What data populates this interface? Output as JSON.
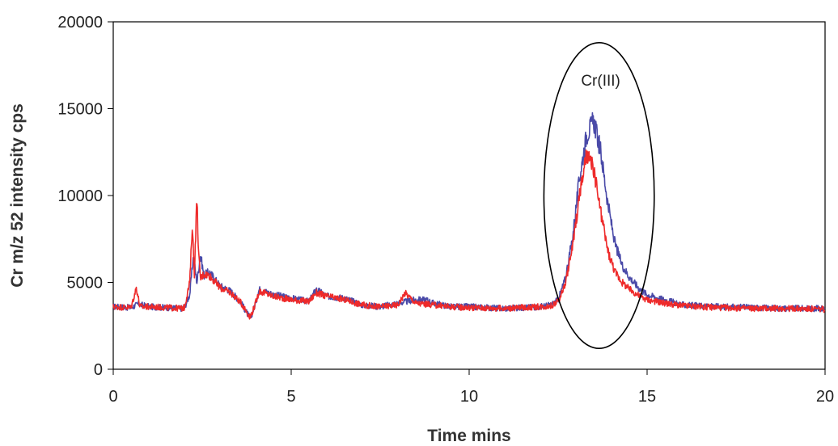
{
  "chart_data": {
    "type": "line",
    "title": "",
    "xlabel": "Time mins",
    "ylabel": "Cr m/z 52 intensity cps",
    "xlim": [
      0,
      20
    ],
    "ylim": [
      0,
      20000
    ],
    "x_ticks": [
      "0",
      "5",
      "10",
      "15",
      "20"
    ],
    "y_ticks": [
      "0",
      "5000",
      "10000",
      "15000",
      "20000"
    ],
    "grid": false,
    "legend": "none",
    "series": [
      {
        "color": "#4a4aa8",
        "points": [
          [
            0,
            3600
          ],
          [
            0.5,
            3550
          ],
          [
            0.7,
            3750
          ],
          [
            1.0,
            3600
          ],
          [
            1.5,
            3550
          ],
          [
            1.9,
            3500
          ],
          [
            2.0,
            3550
          ],
          [
            2.15,
            4300
          ],
          [
            2.25,
            6500
          ],
          [
            2.35,
            5000
          ],
          [
            2.45,
            6600
          ],
          [
            2.55,
            5400
          ],
          [
            2.7,
            5600
          ],
          [
            3.0,
            4800
          ],
          [
            3.3,
            4500
          ],
          [
            3.6,
            3800
          ],
          [
            3.85,
            2900
          ],
          [
            4.0,
            3800
          ],
          [
            4.1,
            4600
          ],
          [
            4.5,
            4300
          ],
          [
            5.0,
            4100
          ],
          [
            5.5,
            3900
          ],
          [
            5.7,
            4600
          ],
          [
            6.0,
            4200
          ],
          [
            6.5,
            4100
          ],
          [
            7.0,
            3700
          ],
          [
            7.5,
            3600
          ],
          [
            8.0,
            3800
          ],
          [
            8.5,
            4000
          ],
          [
            8.8,
            4000
          ],
          [
            9.0,
            3800
          ],
          [
            9.5,
            3600
          ],
          [
            10.0,
            3600
          ],
          [
            11.0,
            3500
          ],
          [
            11.5,
            3550
          ],
          [
            12.0,
            3600
          ],
          [
            12.3,
            3700
          ],
          [
            12.5,
            4000
          ],
          [
            12.7,
            5200
          ],
          [
            12.9,
            7500
          ],
          [
            13.1,
            11000
          ],
          [
            13.3,
            13500
          ],
          [
            13.5,
            14300
          ],
          [
            13.7,
            12500
          ],
          [
            13.9,
            9500
          ],
          [
            14.1,
            7200
          ],
          [
            14.3,
            6000
          ],
          [
            14.5,
            5300
          ],
          [
            14.8,
            4600
          ],
          [
            15.0,
            4300
          ],
          [
            15.3,
            4100
          ],
          [
            15.5,
            4000
          ],
          [
            16.0,
            3700
          ],
          [
            17.0,
            3600
          ],
          [
            18.0,
            3550
          ],
          [
            19.0,
            3500
          ],
          [
            20.0,
            3500
          ]
        ]
      },
      {
        "color": "#ee2a2a",
        "points": [
          [
            0,
            3600
          ],
          [
            0.5,
            3550
          ],
          [
            0.65,
            4700
          ],
          [
            0.75,
            3600
          ],
          [
            1.0,
            3600
          ],
          [
            1.5,
            3550
          ],
          [
            1.9,
            3500
          ],
          [
            2.0,
            3550
          ],
          [
            2.15,
            5000
          ],
          [
            2.22,
            8300
          ],
          [
            2.28,
            5500
          ],
          [
            2.35,
            9900
          ],
          [
            2.4,
            6600
          ],
          [
            2.45,
            5200
          ],
          [
            2.55,
            5500
          ],
          [
            2.7,
            5400
          ],
          [
            3.0,
            4700
          ],
          [
            3.3,
            4400
          ],
          [
            3.6,
            3800
          ],
          [
            3.85,
            3000
          ],
          [
            4.0,
            3800
          ],
          [
            4.1,
            4500
          ],
          [
            4.5,
            4200
          ],
          [
            5.0,
            4000
          ],
          [
            5.5,
            3900
          ],
          [
            5.7,
            4400
          ],
          [
            6.0,
            4200
          ],
          [
            6.5,
            4000
          ],
          [
            7.0,
            3700
          ],
          [
            7.5,
            3600
          ],
          [
            8.0,
            3700
          ],
          [
            8.2,
            4400
          ],
          [
            8.5,
            3800
          ],
          [
            9.0,
            3700
          ],
          [
            9.5,
            3600
          ],
          [
            10.0,
            3550
          ],
          [
            11.0,
            3500
          ],
          [
            11.5,
            3550
          ],
          [
            12.0,
            3600
          ],
          [
            12.3,
            3650
          ],
          [
            12.5,
            3900
          ],
          [
            12.7,
            4900
          ],
          [
            12.9,
            7000
          ],
          [
            13.1,
            10000
          ],
          [
            13.3,
            12300
          ],
          [
            13.5,
            11500
          ],
          [
            13.7,
            9000
          ],
          [
            13.9,
            6800
          ],
          [
            14.1,
            5600
          ],
          [
            14.3,
            5000
          ],
          [
            14.5,
            4600
          ],
          [
            14.8,
            4200
          ],
          [
            15.0,
            4000
          ],
          [
            15.5,
            3800
          ],
          [
            16.0,
            3650
          ],
          [
            17.0,
            3550
          ],
          [
            18.0,
            3500
          ],
          [
            19.0,
            3500
          ],
          [
            20.0,
            3450
          ]
        ]
      }
    ],
    "annotations": [
      {
        "type": "ellipse",
        "label": "Cr(III)",
        "center": [
          13.65,
          10000
        ],
        "rx": 1.55,
        "ry": 8800
      }
    ]
  }
}
